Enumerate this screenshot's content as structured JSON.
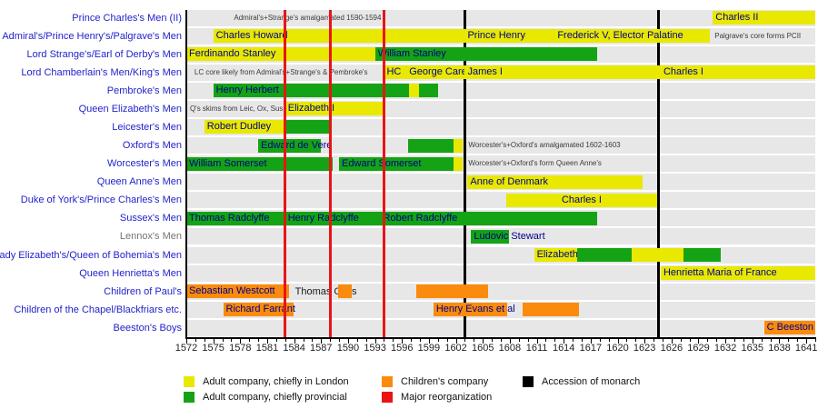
{
  "chart_data": {
    "type": "timeline",
    "title": "",
    "x_axis": {
      "min": 1572,
      "max": 1642,
      "minor_tick_interval": 1,
      "label_interval": 3,
      "tick_labels": [
        1572,
        1575,
        1578,
        1581,
        1584,
        1587,
        1590,
        1593,
        1596,
        1599,
        1602,
        1605,
        1608,
        1611,
        1614,
        1617,
        1620,
        1623,
        1626,
        1629,
        1632,
        1635,
        1638,
        1641
      ]
    },
    "colors": {
      "yellow": "#e8e800",
      "green": "#14a314",
      "orange": "#fa8b0d",
      "red": "#e91414",
      "black": "#000000",
      "band_gray": "#e7e7e7",
      "row_label_blue": "#2222cc",
      "row_label_gray": "#757575",
      "bar_label_navy": "#00008b"
    },
    "event_lines": [
      {
        "year": 1583,
        "color_key": "red",
        "meaning": "Major reorganization"
      },
      {
        "year": 1588,
        "color_key": "red",
        "meaning": "Major reorganization"
      },
      {
        "year": 1594,
        "color_key": "red",
        "meaning": "Major reorganization"
      },
      {
        "year": 1603,
        "color_key": "black",
        "meaning": "Accession of monarch"
      },
      {
        "year": 1624.6,
        "color_key": "black",
        "meaning": "Accession of monarch"
      }
    ],
    "rows": [
      {
        "label": "Prince Charles's Men (II)",
        "bars": [
          {
            "start": 1630.6,
            "end": 1642,
            "color": "yellow",
            "label": "Charles II"
          }
        ],
        "notes": [
          {
            "text": "Admiral's+Strange's amalgamated 1590-1594",
            "start": 1577.3
          }
        ]
      },
      {
        "label": "Admiral's/Prince Henry's/Palgrave's Men",
        "bars": [
          {
            "start": 1575,
            "end": 1603,
            "color": "yellow",
            "label": "Charles Howard"
          },
          {
            "start": 1603,
            "end": 1613,
            "color": "yellow",
            "label": "Prince Henry"
          },
          {
            "start": 1613,
            "end": 1630.3,
            "color": "yellow",
            "label": "Frederick V, Elector Palatine"
          }
        ],
        "notes": [
          {
            "text": "Palgrave's core forms PCII",
            "start": 1630.8
          }
        ]
      },
      {
        "label": "Lord Strange's/Earl of Derby's Men",
        "bars": [
          {
            "start": 1572,
            "end": 1593,
            "color": "yellow",
            "label": "Ferdinando Stanley"
          },
          {
            "start": 1593,
            "end": 1617.7,
            "color": "green",
            "label": "William Stanley"
          }
        ]
      },
      {
        "label": "Lord Chamberlain's Men/King's Men",
        "bars": [
          {
            "start": 1594,
            "end": 1596.5,
            "color": "yellow",
            "label": "HC"
          },
          {
            "start": 1596.5,
            "end": 1603,
            "color": "yellow",
            "label": "George Carey"
          },
          {
            "start": 1603,
            "end": 1624.8,
            "color": "yellow",
            "label": "James I"
          },
          {
            "start": 1624.8,
            "end": 1642,
            "color": "yellow",
            "label": "Charles I"
          }
        ],
        "notes": [
          {
            "text": "LC core likely from Admiral's+Strange's & Pembroke's",
            "start": 1572.9
          }
        ]
      },
      {
        "label": "Pembroke's Men",
        "bars": [
          {
            "start": 1575,
            "end": 1596.8,
            "color": "green",
            "label": "Henry Herbert"
          },
          {
            "start": 1596.8,
            "end": 1597.9,
            "color": "yellow",
            "label": ""
          },
          {
            "start": 1597.9,
            "end": 1600,
            "color": "green",
            "label": ""
          }
        ]
      },
      {
        "label": "Queen Elizabeth's Men",
        "bars": [
          {
            "start": 1583,
            "end": 1594,
            "color": "yellow",
            "label": "Elizabeth I"
          }
        ],
        "notes": [
          {
            "text": "Q's skims from Leic, Ox, Sus",
            "start": 1572.4
          }
        ]
      },
      {
        "label": "Leicester's Men",
        "bars": [
          {
            "start": 1574,
            "end": 1583,
            "color": "yellow",
            "label": "Robert Dudley"
          },
          {
            "start": 1583,
            "end": 1588,
            "color": "green",
            "label": ""
          }
        ]
      },
      {
        "label": "Oxford's Men",
        "bars": [
          {
            "start": 1580,
            "end": 1587,
            "color": "green",
            "label": "Edward de Vere"
          },
          {
            "start": 1596.7,
            "end": 1601.7,
            "color": "green",
            "label": ""
          },
          {
            "start": 1601.7,
            "end": 1602.8,
            "color": "yellow",
            "label": ""
          }
        ],
        "notes": [
          {
            "text": "Worcester's+Oxford's amalgamated 1602-1603",
            "start": 1603.4
          }
        ]
      },
      {
        "label": "Worcester's Men",
        "bars": [
          {
            "start": 1572,
            "end": 1588.3,
            "color": "green",
            "label": "William Somerset"
          },
          {
            "start": 1589,
            "end": 1601.7,
            "color": "green",
            "label": "Edward Somerset"
          },
          {
            "start": 1601.7,
            "end": 1602.8,
            "color": "yellow",
            "label": ""
          }
        ],
        "notes": [
          {
            "text": "Worcester's+Oxford's form Queen Anne's",
            "start": 1603.4
          }
        ]
      },
      {
        "label": "Queen Anne's Men",
        "bars": [
          {
            "start": 1603.3,
            "end": 1622.8,
            "color": "yellow",
            "label": "Anne of Denmark"
          }
        ]
      },
      {
        "label": "Duke of York's/Prince Charles's Men",
        "bars": [
          {
            "start": 1607.6,
            "end": 1624.4,
            "color": "yellow",
            "label": "Charles I",
            "align": "center"
          }
        ]
      },
      {
        "label": "Sussex's Men",
        "bars": [
          {
            "start": 1572,
            "end": 1583,
            "color": "green",
            "label": "Thomas Radclyffe"
          },
          {
            "start": 1583,
            "end": 1593.6,
            "color": "green",
            "label": "Henry Radclyffe"
          },
          {
            "start": 1593.6,
            "end": 1617.7,
            "color": "green",
            "label": "Robert Radclyffe"
          }
        ]
      },
      {
        "label": "Lennox's Men",
        "label_color": "gray",
        "bars": [
          {
            "start": 1603.7,
            "end": 1607.9,
            "color": "green",
            "label": "Ludovic Stewart"
          }
        ]
      },
      {
        "label": "Lady Elizabeth's/Queen of Bohemia's Men",
        "bars": [
          {
            "start": 1610.7,
            "end": 1615.5,
            "color": "yellow",
            "label": "Elizabeth Stuart"
          },
          {
            "start": 1615.5,
            "end": 1621.6,
            "color": "green",
            "label": ""
          },
          {
            "start": 1621.6,
            "end": 1627.3,
            "color": "yellow",
            "label": ""
          },
          {
            "start": 1627.3,
            "end": 1631.5,
            "color": "green",
            "label": ""
          }
        ]
      },
      {
        "label": "Queen Henrietta's Men",
        "bars": [
          {
            "start": 1624.8,
            "end": 1642,
            "color": "yellow",
            "label": "Henrietta Maria of France"
          }
        ]
      },
      {
        "label": "Children of Paul's",
        "bars": [
          {
            "start": 1572,
            "end": 1583.4,
            "color": "orange",
            "label": "Sebastian Westcott"
          },
          {
            "start": 1588.9,
            "end": 1590.4,
            "color": "orange",
            "label": ""
          },
          {
            "start": 1597.6,
            "end": 1605.6,
            "color": "orange",
            "label": ""
          }
        ],
        "texts": [
          {
            "text": "Thomas Giles",
            "start": 1584.1
          }
        ]
      },
      {
        "label": "Children of the Chapel/Blackfriars etc.",
        "bars": [
          {
            "start": 1576.1,
            "end": 1583.9,
            "color": "orange",
            "label": "Richard Farrant"
          },
          {
            "start": 1599.5,
            "end": 1607.7,
            "color": "orange",
            "label": "Henry Evans et al"
          },
          {
            "start": 1609.4,
            "end": 1615.7,
            "color": "orange",
            "label": ""
          }
        ]
      },
      {
        "label": "Beeston's Boys",
        "bars": [
          {
            "start": 1636.3,
            "end": 1642,
            "color": "orange",
            "label": "C Beeston"
          }
        ]
      }
    ]
  },
  "legend": {
    "items": [
      {
        "label": "Adult company, chiefly in London",
        "color_key": "yellow",
        "col": 1,
        "row": 1
      },
      {
        "label": "Adult company, chiefly provincial",
        "color_key": "green",
        "col": 1,
        "row": 2
      },
      {
        "label": "Children's company",
        "color_key": "orange",
        "col": 2,
        "row": 1
      },
      {
        "label": "Major reorganization",
        "color_key": "red",
        "col": 2,
        "row": 2
      },
      {
        "label": "Accession of monarch",
        "color_key": "black",
        "col": 3,
        "row": 1
      }
    ]
  }
}
